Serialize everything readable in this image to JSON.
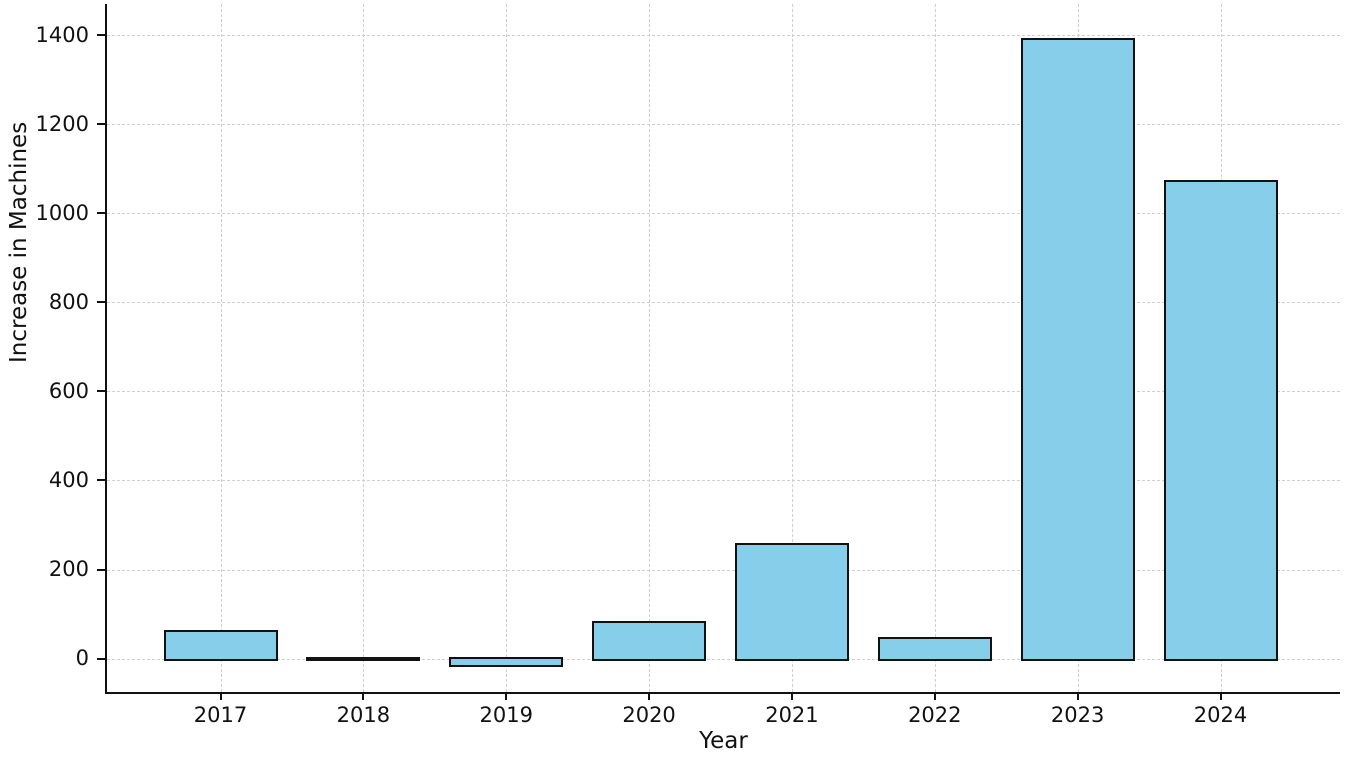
{
  "chart_data": {
    "type": "bar",
    "title": "",
    "xlabel": "Year",
    "ylabel": "Increase in Machines",
    "categories": [
      "2017",
      "2018",
      "2019",
      "2020",
      "2021",
      "2022",
      "2023",
      "2024"
    ],
    "values": [
      60,
      -2,
      -15,
      80,
      255,
      45,
      1390,
      1070
    ],
    "y_ticks": [
      0,
      200,
      400,
      600,
      800,
      1000,
      1200,
      1400
    ],
    "ylim": [
      -75,
      1470
    ],
    "grid": true,
    "grid_style": "dashed",
    "legend": "none",
    "bar_color": "#87CEEB",
    "bar_edge_color": "#111111",
    "grid_color": "#cfcfcf",
    "axis_color": "#111111",
    "background_color": "#ffffff"
  }
}
